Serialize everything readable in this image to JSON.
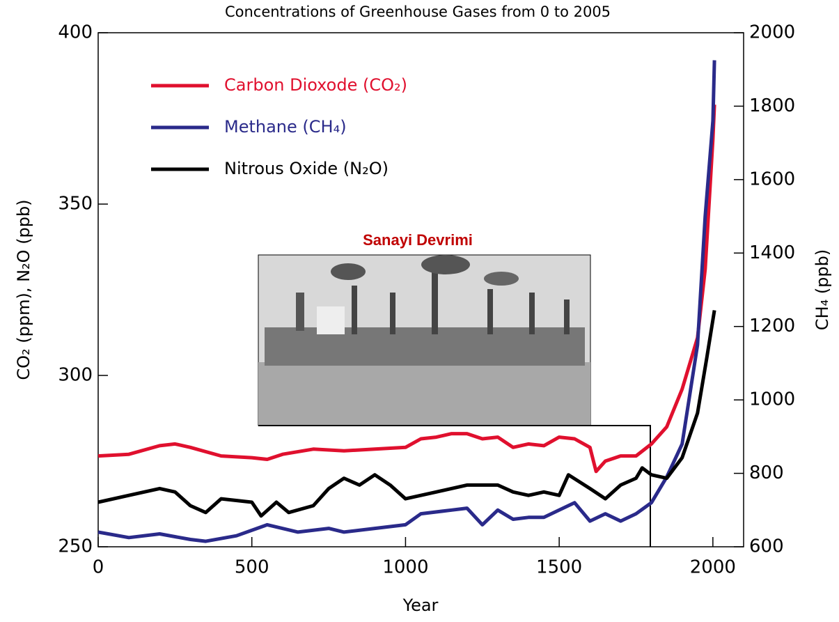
{
  "chart_data": {
    "type": "line",
    "title": "Concentrations of Greenhouse Gases from 0 to 2005",
    "x_label": "Year",
    "y_label": "CO₂ (ppm), N₂O (ppb)",
    "y2_label": "CH₄ (ppb)",
    "annotation": "Sanayi Devrimi",
    "xlim": [
      0,
      2100
    ],
    "xticks": [
      0,
      500,
      1000,
      1500,
      2000
    ],
    "ylim": [
      250,
      400
    ],
    "yticks": [
      250,
      300,
      350,
      400
    ],
    "y2lim": [
      600,
      2000
    ],
    "y2ticks": [
      600,
      800,
      1000,
      1200,
      1400,
      1600,
      1800,
      2000
    ],
    "series": [
      {
        "name": "Carbon Dioxode (CO₂)",
        "color": "#e0102e",
        "x": [
          0,
          100,
          200,
          250,
          300,
          400,
          500,
          550,
          600,
          700,
          800,
          900,
          1000,
          1050,
          1100,
          1150,
          1200,
          1250,
          1300,
          1350,
          1400,
          1450,
          1500,
          1550,
          1600,
          1620,
          1650,
          1700,
          1750,
          1800,
          1850,
          1900,
          1950,
          1975,
          2000,
          2005
        ],
        "values": [
          276.5,
          277,
          279.5,
          280,
          279,
          276.5,
          276,
          275.5,
          277,
          278.5,
          278,
          278.5,
          279,
          281.5,
          282,
          283,
          283,
          281.5,
          282,
          279,
          280,
          279.5,
          282,
          281.5,
          279,
          272,
          275,
          276.5,
          276.5,
          280,
          285,
          296,
          311,
          331,
          369,
          379
        ]
      },
      {
        "name": "Methane (CH₄)",
        "color": "#2a2a8a",
        "axis": "y2",
        "x": [
          0,
          100,
          200,
          300,
          350,
          450,
          550,
          650,
          750,
          800,
          900,
          1000,
          1050,
          1150,
          1200,
          1250,
          1300,
          1350,
          1400,
          1450,
          1500,
          1550,
          1600,
          1650,
          1700,
          1750,
          1800,
          1850,
          1900,
          1950,
          1975,
          2000,
          2005
        ],
        "values": [
          640,
          625,
          635,
          620,
          615,
          630,
          660,
          640,
          650,
          640,
          650,
          660,
          690,
          700,
          705,
          660,
          700,
          675,
          680,
          680,
          700,
          720,
          670,
          690,
          670,
          690,
          720,
          790,
          880,
          1150,
          1500,
          1760,
          1925
        ]
      },
      {
        "name": "Nitrous Oxide (N₂O)",
        "color": "#000000",
        "x": [
          0,
          100,
          200,
          250,
          300,
          350,
          400,
          500,
          530,
          580,
          620,
          700,
          750,
          800,
          850,
          900,
          950,
          1000,
          1100,
          1200,
          1300,
          1350,
          1400,
          1450,
          1500,
          1530,
          1600,
          1650,
          1700,
          1750,
          1770,
          1800,
          1850,
          1900,
          1950,
          1980,
          2005
        ],
        "values": [
          263,
          265,
          267,
          266,
          262,
          260,
          264,
          263,
          259,
          263,
          260,
          262,
          267,
          270,
          268,
          271,
          268,
          264,
          266,
          268,
          268,
          266,
          265,
          266,
          265,
          271,
          267,
          264,
          268,
          270,
          273,
          271,
          270,
          276,
          289,
          305,
          319
        ]
      }
    ]
  }
}
